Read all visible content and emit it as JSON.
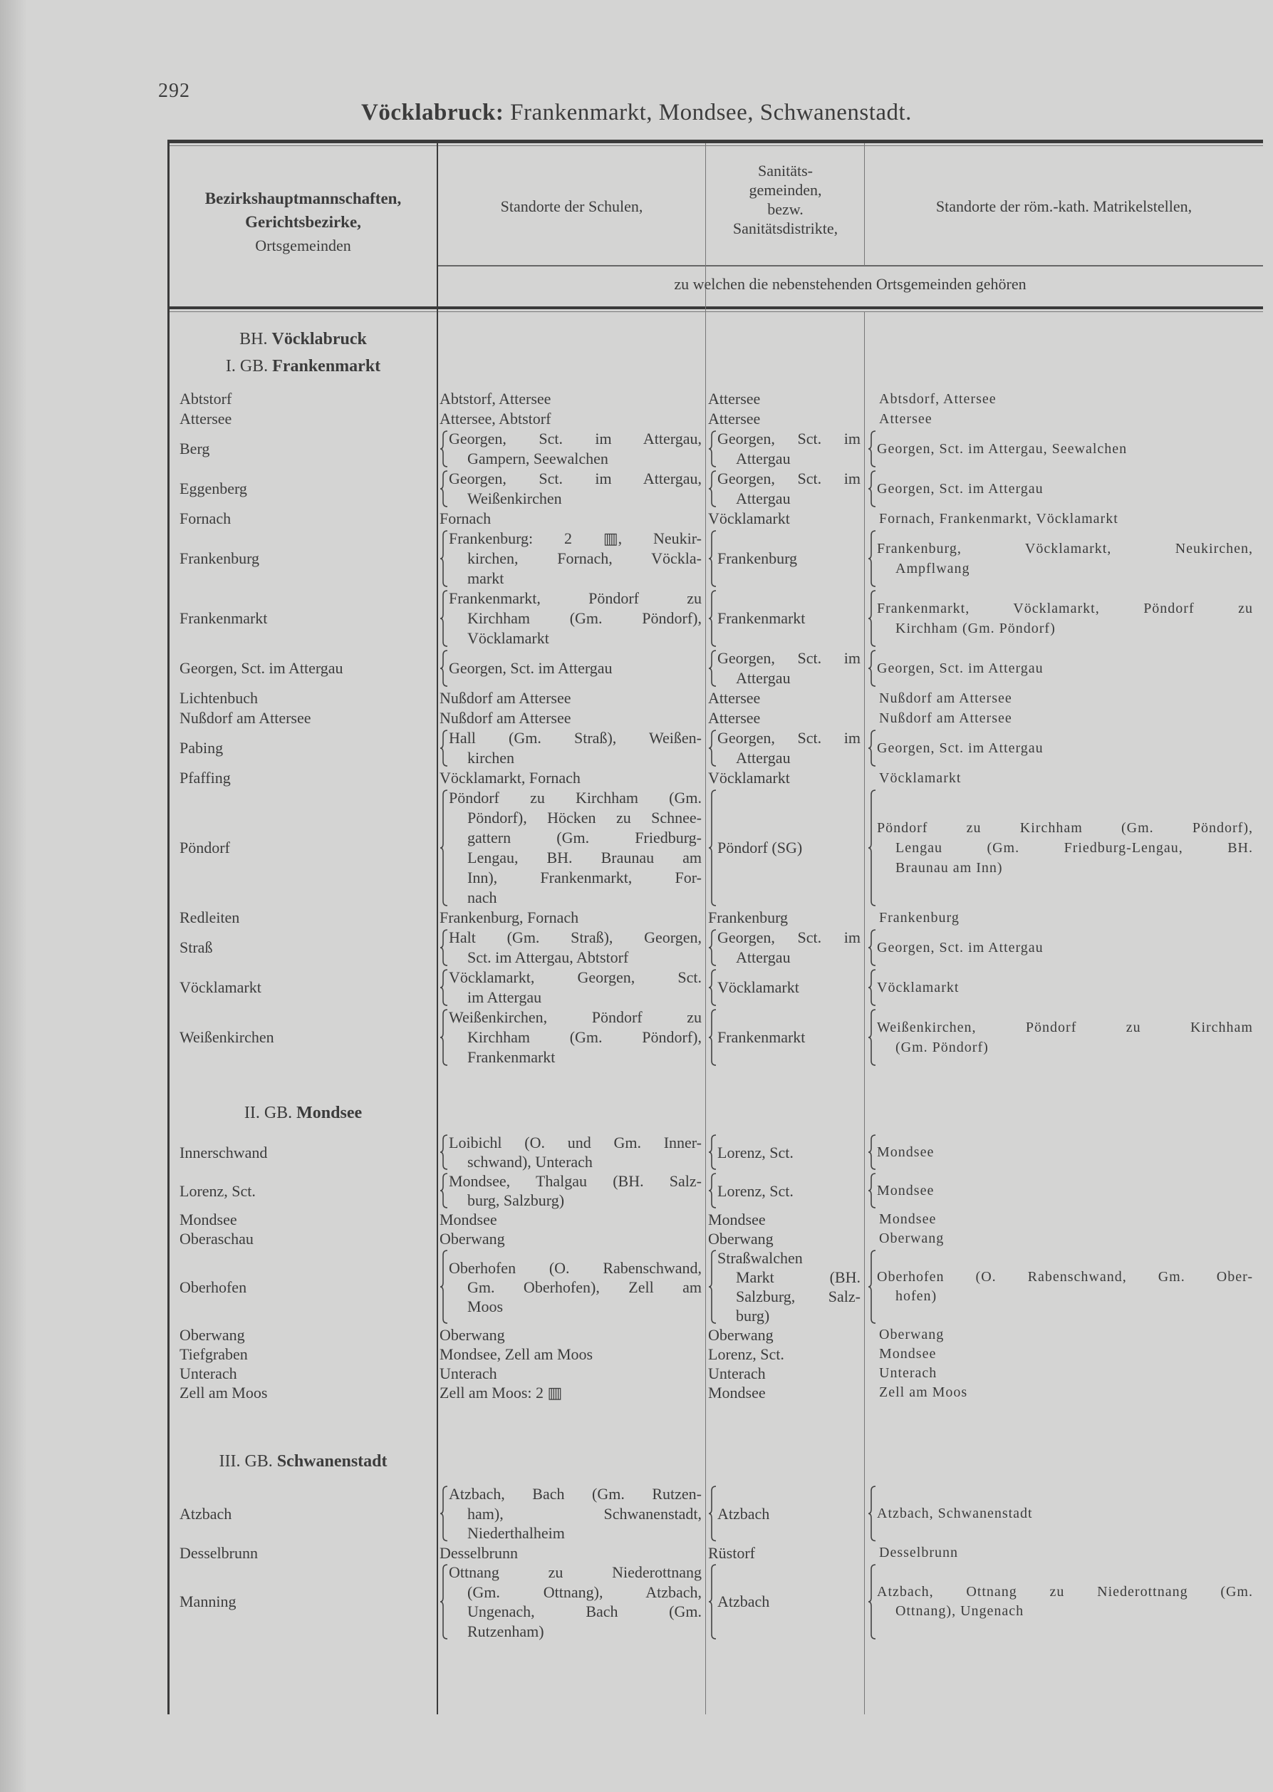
{
  "page_number": "292",
  "title": {
    "bold": "Vöcklabruck:",
    "rest": " Frankenmarkt, Mondsee, Schwanenstadt."
  },
  "header": {
    "col1": [
      "Bezirkshauptmannschaften,",
      "Gerichtsbezirke,",
      "Ortsgemeinden"
    ],
    "col2": "Standorte der Schulen,",
    "col3": [
      "Sanitäts-",
      "gemeinden,",
      "bezw.",
      "Sanitätsdistrikte,"
    ],
    "col4": "Standorte der röm.-kath. Matrikelstellen,",
    "span": "zu welchen die nebenstehenden Ortsgemeinden gehören"
  },
  "sections": [
    {
      "headings": [
        {
          "prefix": "BH. ",
          "name": "Vöcklabruck"
        },
        {
          "prefix": "I. GB. ",
          "name": "Frankenmarkt"
        }
      ],
      "rows": [
        {
          "name": "Abtstorf",
          "schools": [
            "Abtstorf, Attersee"
          ],
          "sanitary": [
            "Attersee"
          ],
          "matrikel": [
            "Abtsdorf, Attersee"
          ]
        },
        {
          "name": "Attersee",
          "schools": [
            "Attersee, Abtstorf"
          ],
          "sanitary": [
            "Attersee"
          ],
          "matrikel": [
            "Attersee"
          ]
        },
        {
          "name": "Berg",
          "schools": [
            "Georgen, Sct. im Attergau,",
            "Gampern, Seewalchen"
          ],
          "sanitary": [
            "Georgen, Sct. im",
            "Attergau"
          ],
          "matrikel": [
            "Georgen, Sct. im Attergau, Seewalchen"
          ]
        },
        {
          "name": "Eggenberg",
          "schools": [
            "Georgen, Sct. im Attergau,",
            "Weißenkirchen"
          ],
          "sanitary": [
            "Georgen, Sct. im",
            "Attergau"
          ],
          "matrikel": [
            "Georgen, Sct. im Attergau"
          ]
        },
        {
          "name": "Fornach",
          "schools": [
            "Fornach"
          ],
          "sanitary": [
            "Vöcklamarkt"
          ],
          "matrikel": [
            "Fornach, Frankenmarkt, Vöcklamarkt"
          ]
        },
        {
          "name": "Frankenburg",
          "schools": [
            "Frankenburg: 2 ▥, Neukir-",
            "kirchen, Fornach, Vöckla-",
            "markt"
          ],
          "sanitary": [
            "Frankenburg"
          ],
          "matrikel": [
            "Frankenburg, Vöcklamarkt, Neukirchen,",
            "Ampflwang"
          ]
        },
        {
          "name": "Frankenmarkt",
          "schools": [
            "Frankenmarkt, Pöndorf zu",
            "Kirchham (Gm. Pöndorf),",
            "Vöcklamarkt"
          ],
          "sanitary": [
            "Frankenmarkt"
          ],
          "matrikel": [
            "Frankenmarkt, Vöcklamarkt, Pöndorf zu",
            "Kirchham (Gm. Pöndorf)"
          ]
        },
        {
          "name": "Georgen, Sct. im Attergau",
          "schools": [
            "Georgen, Sct. im Attergau"
          ],
          "sanitary": [
            "Georgen, Sct. im",
            "Attergau"
          ],
          "matrikel": [
            "Georgen, Sct. im Attergau"
          ]
        },
        {
          "name": "Lichtenbuch",
          "schools": [
            "Nußdorf am Attersee"
          ],
          "sanitary": [
            "Attersee"
          ],
          "matrikel": [
            "Nußdorf am Attersee"
          ]
        },
        {
          "name": "Nußdorf am Attersee",
          "schools": [
            "Nußdorf am Attersee"
          ],
          "sanitary": [
            "Attersee"
          ],
          "matrikel": [
            "Nußdorf am Attersee"
          ]
        },
        {
          "name": "Pabing",
          "schools": [
            "Hall (Gm. Straß), Weißen-",
            "kirchen"
          ],
          "sanitary": [
            "Georgen, Sct. im",
            "Attergau"
          ],
          "matrikel": [
            "Georgen, Sct. im Attergau"
          ]
        },
        {
          "name": "Pfaffing",
          "schools": [
            "Vöcklamarkt, Fornach"
          ],
          "sanitary": [
            "Vöcklamarkt"
          ],
          "matrikel": [
            "Vöcklamarkt"
          ]
        },
        {
          "name": "Pöndorf",
          "schools": [
            "Pöndorf zu Kirchham (Gm.",
            "Pöndorf), Höcken zu Schnee-",
            "gattern (Gm. Friedburg-",
            "Lengau, BH. Braunau am",
            "Inn), Frankenmarkt, For-",
            "nach"
          ],
          "sanitary": [
            "Pöndorf (SG)"
          ],
          "matrikel": [
            "Pöndorf zu Kirchham (Gm. Pöndorf),",
            "Lengau (Gm. Friedburg-Lengau, BH.",
            "Braunau am Inn)"
          ]
        },
        {
          "name": "Redleiten",
          "schools": [
            "Frankenburg, Fornach"
          ],
          "sanitary": [
            "Frankenburg"
          ],
          "matrikel": [
            "Frankenburg"
          ]
        },
        {
          "name": "Straß",
          "schools": [
            "Halt (Gm. Straß), Georgen,",
            "Sct. im Attergau, Abtstorf"
          ],
          "sanitary": [
            "Georgen, Sct. im",
            "Attergau"
          ],
          "matrikel": [
            "Georgen, Sct. im Attergau"
          ]
        },
        {
          "name": "Vöcklamarkt",
          "schools": [
            "Vöcklamarkt, Georgen, Sct.",
            "im Attergau"
          ],
          "sanitary": [
            "Vöcklamarkt"
          ],
          "matrikel": [
            "Vöcklamarkt"
          ]
        },
        {
          "name": "Weißenkirchen",
          "schools": [
            "Weißenkirchen, Pöndorf zu",
            "Kirchham (Gm. Pöndorf),",
            "Frankenmarkt"
          ],
          "sanitary": [
            "Frankenmarkt"
          ],
          "matrikel": [
            "Weißenkirchen, Pöndorf zu Kirchham",
            "(Gm. Pöndorf)"
          ]
        }
      ]
    },
    {
      "headings": [
        {
          "prefix": "II. GB. ",
          "name": "Mondsee"
        }
      ],
      "rows": [
        {
          "name": "Innerschwand",
          "schools": [
            "Loibichl (O. und Gm. Inner-",
            "schwand), Unterach"
          ],
          "sanitary": [
            "Lorenz, Sct."
          ],
          "matrikel": [
            "Mondsee"
          ]
        },
        {
          "name": "Lorenz, Sct.",
          "schools": [
            "Mondsee, Thalgau (BH. Salz-",
            "burg, Salzburg)"
          ],
          "sanitary": [
            "Lorenz, Sct."
          ],
          "matrikel": [
            "Mondsee"
          ]
        },
        {
          "name": "Mondsee",
          "schools": [
            "Mondsee"
          ],
          "sanitary": [
            "Mondsee"
          ],
          "matrikel": [
            "Mondsee"
          ]
        },
        {
          "name": "Oberaschau",
          "schools": [
            "Oberwang"
          ],
          "sanitary": [
            "Oberwang"
          ],
          "matrikel": [
            "Oberwang"
          ]
        },
        {
          "name": "Oberhofen",
          "schools": [
            "Oberhofen (O. Rabenschwand,",
            "Gm. Oberhofen), Zell am",
            "Moos"
          ],
          "sanitary": [
            "Straßwalchen",
            "Markt (BH.",
            "Salzburg, Salz-",
            "burg)"
          ],
          "matrikel": [
            "Oberhofen (O. Rabenschwand, Gm. Ober-",
            "hofen)"
          ]
        },
        {
          "name": "Oberwang",
          "schools": [
            "Oberwang"
          ],
          "sanitary": [
            "Oberwang"
          ],
          "matrikel": [
            "Oberwang"
          ]
        },
        {
          "name": "Tiefgraben",
          "schools": [
            "Mondsee, Zell am Moos"
          ],
          "sanitary": [
            "Lorenz, Sct."
          ],
          "matrikel": [
            "Mondsee"
          ]
        },
        {
          "name": "Unterach",
          "schools": [
            "Unterach"
          ],
          "sanitary": [
            "Unterach"
          ],
          "matrikel": [
            "Unterach"
          ]
        },
        {
          "name": "Zell am Moos",
          "schools": [
            "Zell am Moos: 2 ▥"
          ],
          "sanitary": [
            "Mondsee"
          ],
          "matrikel": [
            "Zell am Moos"
          ]
        }
      ]
    },
    {
      "headings": [
        {
          "prefix": "III. GB. ",
          "name": "Schwanenstadt"
        }
      ],
      "rows": [
        {
          "name": "Atzbach",
          "schools": [
            "Atzbach, Bach (Gm. Rutzen-",
            "ham), Schwanenstadt,",
            "Niederthalheim"
          ],
          "sanitary": [
            "Atzbach"
          ],
          "matrikel": [
            "Atzbach, Schwanenstadt"
          ]
        },
        {
          "name": "Desselbrunn",
          "schools": [
            "Desselbrunn"
          ],
          "sanitary": [
            "Rüstorf"
          ],
          "matrikel": [
            "Desselbrunn"
          ]
        },
        {
          "name": "Manning",
          "schools": [
            "Ottnang zu Niederottnang",
            "(Gm. Ottnang), Atzbach,",
            "Ungenach, Bach (Gm.",
            "Rutzenham)"
          ],
          "sanitary": [
            "Atzbach"
          ],
          "matrikel": [
            "Atzbach, Ottnang zu Niederottnang (Gm.",
            "Ottnang), Ungenach"
          ]
        }
      ]
    }
  ]
}
